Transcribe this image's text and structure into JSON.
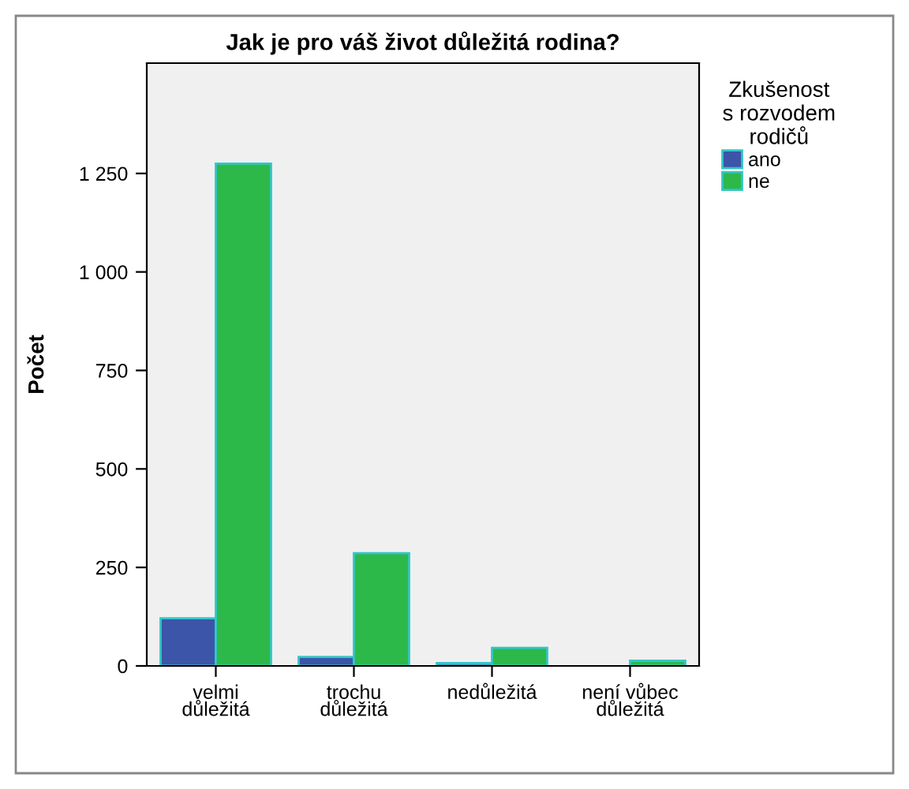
{
  "chart_data": {
    "type": "bar",
    "title": "Jak je pro váš život důležitá rodina?",
    "ylabel": "Počet",
    "legend_title": "Zkušenost\ns rozvodem\nrodičů",
    "categories": [
      "velmi\ndůležitá",
      "trochu\ndůležitá",
      "nedůležitá",
      "není vůbec\ndůležitá"
    ],
    "series": [
      {
        "name": "ano",
        "color": "#3c55a8",
        "values": [
          121,
          23,
          7,
          null
        ]
      },
      {
        "name": "ne",
        "color": "#2db84a",
        "values": [
          1275,
          286,
          46,
          13
        ]
      }
    ],
    "ylim": [
      0,
      1530
    ],
    "yticks": [
      0,
      250,
      500,
      750,
      {
        "value": 1000,
        "label": "1 000"
      },
      {
        "value": 1250,
        "label": "1 250"
      }
    ],
    "grid": false,
    "legend": "right"
  }
}
